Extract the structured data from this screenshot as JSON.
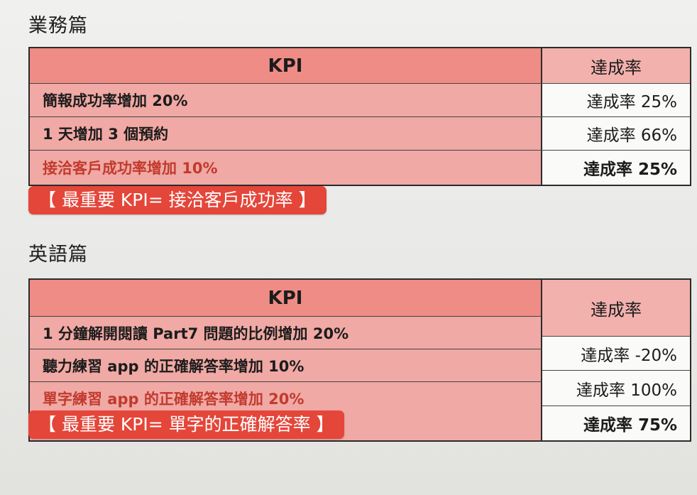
{
  "business": {
    "title": "業務篇",
    "header_kpi": "KPI",
    "header_rate": "達成率",
    "rows": [
      {
        "kpi": "簡報成功率增加 20%",
        "rate": "達成率 25%"
      },
      {
        "kpi": "1 天增加 3 個預約",
        "rate": "達成率 66%"
      },
      {
        "kpi": "接洽客戶成功率增加 10%",
        "rate": "達成率 25%"
      }
    ],
    "highlight": "【 最重要 KPI= 接洽客戶成功率 】"
  },
  "english": {
    "title": "英語篇",
    "header_kpi": "KPI",
    "header_rate": "達成率",
    "rows": [
      {
        "kpi": "1 分鐘解開閱讀 Part7 問題的比例增加 20%",
        "rate": "達成率 -20%"
      },
      {
        "kpi": "聽力練習 app 的正確解答率增加 10%",
        "rate": "達成率 100%"
      },
      {
        "kpi": "單字練習 app 的正確解答率增加 20%",
        "rate": "達成率 75%"
      }
    ],
    "highlight": "【 最重要 KPI= 單字的正確解答率 】"
  },
  "colors": {
    "header_red": "#ee8c85",
    "row_pink": "#f0a9a4",
    "accent_red": "#c23a2e",
    "badge_red": "#e4463a"
  }
}
